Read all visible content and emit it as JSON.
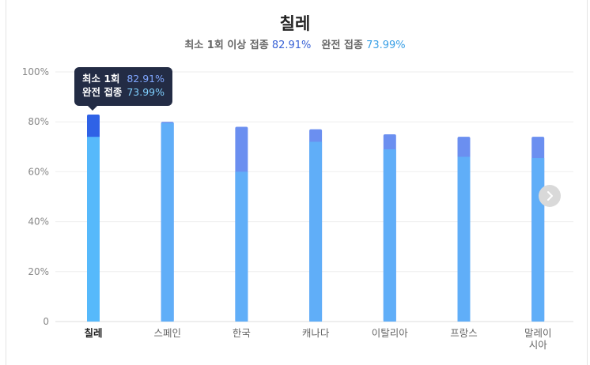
{
  "title": "칠레",
  "subtitle": {
    "first_label": "최소 1회 이상 접종",
    "first_value": "82.91%",
    "full_label": "완전 접종",
    "full_value": "73.99%"
  },
  "tooltip": {
    "first_label": "최소 1회",
    "first_value": "82.91%",
    "full_label": "완전 접종",
    "full_value": "73.99%"
  },
  "colors": {
    "first_dose": "#6b8ff0",
    "first_dose_highlight": "#2f62e6",
    "full": "#60aef8",
    "full_highlight": "#56b9fb",
    "grid": "#eeeeee",
    "axis_text": "#888888"
  },
  "next_icon": "chevron-right-icon",
  "chart_data": {
    "type": "bar",
    "stacked": "overlay",
    "categories": [
      [
        "칠레"
      ],
      [
        "스페인"
      ],
      [
        "한국"
      ],
      [
        "캐나다"
      ],
      [
        "이탈리아"
      ],
      [
        "프랑스"
      ],
      [
        "말레이",
        "시아"
      ]
    ],
    "series": [
      {
        "key": "full",
        "values": [
          73.99,
          79.5,
          60.0,
          72.0,
          69.0,
          66.0,
          65.5
        ]
      },
      {
        "key": "first_dose",
        "values": [
          82.91,
          80.0,
          78.0,
          77.0,
          75.0,
          74.0,
          74.0
        ]
      }
    ],
    "highlight_index": 0,
    "ylim": [
      0,
      100
    ],
    "yticks": [
      "0",
      "20%",
      "40%",
      "60%",
      "80%",
      "100%"
    ],
    "grid": true
  }
}
